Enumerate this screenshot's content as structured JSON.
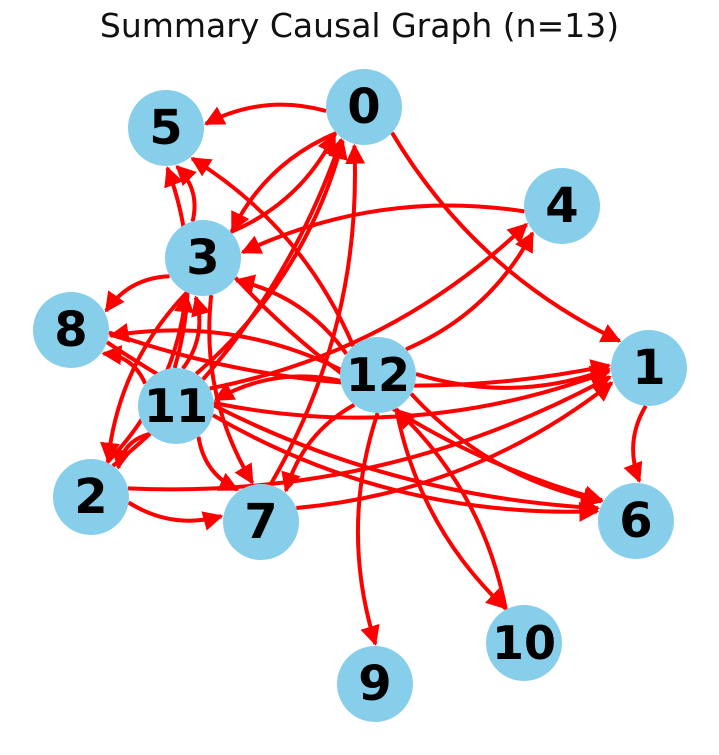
{
  "title": "Summary Causal Graph (n=13)",
  "colors": {
    "node_fill": "#87CEEB",
    "edge": "#ff0000",
    "label": "#000000",
    "background": "#ffffff"
  },
  "nodes": [
    {
      "id": "0",
      "label": "0"
    },
    {
      "id": "1",
      "label": "1"
    },
    {
      "id": "2",
      "label": "2"
    },
    {
      "id": "3",
      "label": "3"
    },
    {
      "id": "4",
      "label": "4"
    },
    {
      "id": "5",
      "label": "5"
    },
    {
      "id": "6",
      "label": "6"
    },
    {
      "id": "7",
      "label": "7"
    },
    {
      "id": "8",
      "label": "8"
    },
    {
      "id": "9",
      "label": "9"
    },
    {
      "id": "10",
      "label": "10"
    },
    {
      "id": "11",
      "label": "11"
    },
    {
      "id": "12",
      "label": "12"
    }
  ],
  "edges": [
    {
      "from": "0",
      "to": "5"
    },
    {
      "from": "0",
      "to": "1"
    },
    {
      "from": "0",
      "to": "3"
    },
    {
      "from": "3",
      "to": "0"
    },
    {
      "from": "3",
      "to": "5"
    },
    {
      "from": "3",
      "to": "8"
    },
    {
      "from": "3",
      "to": "2"
    },
    {
      "from": "3",
      "to": "7"
    },
    {
      "from": "3",
      "to": "6"
    },
    {
      "from": "4",
      "to": "3"
    },
    {
      "from": "12",
      "to": "4"
    },
    {
      "from": "12",
      "to": "3"
    },
    {
      "from": "12",
      "to": "5"
    },
    {
      "from": "12",
      "to": "1"
    },
    {
      "from": "12",
      "to": "8"
    },
    {
      "from": "12",
      "to": "11"
    },
    {
      "from": "12",
      "to": "6"
    },
    {
      "from": "12",
      "to": "9"
    },
    {
      "from": "12",
      "to": "10"
    },
    {
      "from": "12",
      "to": "7"
    },
    {
      "from": "11",
      "to": "0"
    },
    {
      "from": "11",
      "to": "5"
    },
    {
      "from": "11",
      "to": "3"
    },
    {
      "from": "11",
      "to": "8"
    },
    {
      "from": "11",
      "to": "2"
    },
    {
      "from": "11",
      "to": "7"
    },
    {
      "from": "11",
      "to": "1"
    },
    {
      "from": "11",
      "to": "6"
    },
    {
      "from": "11",
      "to": "4"
    },
    {
      "from": "2",
      "to": "0"
    },
    {
      "from": "2",
      "to": "3"
    },
    {
      "from": "2",
      "to": "7"
    },
    {
      "from": "2",
      "to": "1"
    },
    {
      "from": "7",
      "to": "0"
    },
    {
      "from": "7",
      "to": "1"
    },
    {
      "from": "8",
      "to": "1"
    },
    {
      "from": "8",
      "to": "6"
    },
    {
      "from": "1",
      "to": "6"
    },
    {
      "from": "10",
      "to": "12"
    }
  ]
}
